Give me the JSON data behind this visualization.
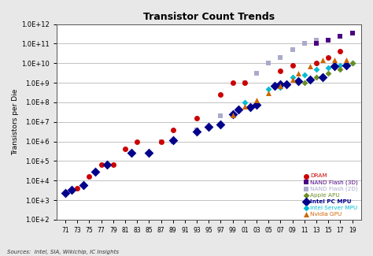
{
  "title": "Transistor Count Trends",
  "ylabel": "Transistors per Die",
  "source_text": "Sources:  Intel, SIA, Wikichip, IC Insights",
  "fig_bg": "#e8e8e8",
  "plot_bg": "#ffffff",
  "series": {
    "DRAM": {
      "color": "#cc0000",
      "marker": "o",
      "ms": 5,
      "zorder": 5,
      "years": [
        1973,
        1975,
        1977,
        1979,
        1981,
        1983,
        1987,
        1989,
        1993,
        1997,
        1999,
        2001,
        2007,
        2009,
        2013,
        2015,
        2017
      ],
      "counts": [
        4000,
        16000,
        65000,
        65000,
        400000,
        1000000,
        1000000,
        4000000,
        16000000,
        256000000,
        1000000000,
        1000000000,
        4000000000,
        8000000000,
        10000000000,
        20000000000,
        40000000000
      ]
    },
    "NAND Flash (3D)": {
      "color": "#4b0082",
      "marker": "s",
      "ms": 5,
      "zorder": 6,
      "years": [
        2013,
        2015,
        2017,
        2019
      ],
      "counts": [
        100000000000.0,
        150000000000.0,
        250000000000.0,
        350000000000.0
      ]
    },
    "NAND Flash (2D)": {
      "color": "#aaaacc",
      "marker": "s",
      "ms": 5,
      "zorder": 4,
      "years": [
        1987,
        1989,
        1993,
        1997,
        2001,
        2003,
        2005,
        2007,
        2009,
        2011,
        2013
      ],
      "counts": [
        1000000.0,
        1000000.0,
        4000000.0,
        20000000.0,
        1000000000.0,
        3000000000.0,
        10000000000.0,
        20000000000.0,
        50000000000.0,
        100000000000.0,
        150000000000.0
      ]
    },
    "Apple APU": {
      "color": "#6b8e23",
      "marker": "D",
      "ms": 4,
      "zorder": 5,
      "years": [
        2011,
        2013,
        2015,
        2017,
        2019
      ],
      "counts": [
        1000000000.0,
        2000000000.0,
        3000000000.0,
        5000000000.0,
        10000000000.0
      ]
    },
    "Intel PC MPU": {
      "color": "#00008B",
      "marker": "D",
      "ms": 6,
      "zorder": 5,
      "bold": true,
      "years": [
        1971,
        1972,
        1974,
        1976,
        1978,
        1982,
        1985,
        1989,
        1993,
        1995,
        1997,
        1999,
        2000,
        2002,
        2003,
        2006,
        2007,
        2008,
        2010,
        2012,
        2014,
        2016,
        2018
      ],
      "counts": [
        2300,
        3500,
        6000,
        29000,
        68000,
        275000,
        275000,
        1200000,
        3100000,
        5500000,
        7500000,
        24000000,
        42000000,
        55000000,
        77000000,
        700000000,
        820000000,
        820000000,
        1170000000,
        1400000000,
        1900000000,
        7200000000,
        8000000000
      ]
    },
    "Intel Server MPU": {
      "color": "#00bcd4",
      "marker": "D",
      "ms": 4,
      "zorder": 4,
      "years": [
        2001,
        2005,
        2007,
        2009,
        2011,
        2013,
        2015,
        2017,
        2019
      ],
      "counts": [
        100000000.0,
        500000000.0,
        600000000.0,
        2000000000.0,
        2500000000.0,
        5000000000.0,
        6000000000.0,
        8000000000.0,
        10000000000.0
      ]
    },
    "Nvidia GPU": {
      "color": "#cc6600",
      "marker": "^",
      "ms": 5,
      "zorder": 5,
      "years": [
        1999,
        2001,
        2003,
        2005,
        2007,
        2009,
        2010,
        2012,
        2014,
        2016,
        2018
      ],
      "counts": [
        22000000,
        60000000,
        130000000,
        300000000.0,
        680000000.0,
        1400000000.0,
        3000000000.0,
        7000000000.0,
        15000000000.0,
        15000000000.0,
        15000000000.0
      ]
    }
  },
  "legend_order": [
    "DRAM",
    "NAND Flash (3D)",
    "NAND Flash (2D)",
    "Apple APU",
    "Intel PC MPU",
    "Intel Server MPU",
    "Nvidia GPU"
  ],
  "yticks": [
    100.0,
    1000.0,
    10000.0,
    100000.0,
    1000000.0,
    10000000.0,
    100000000.0,
    1000000000.0,
    10000000000.0,
    100000000000.0,
    1000000000000.0
  ],
  "ytick_labels": [
    "1.0E+2",
    "1.0E+3",
    "1.0E+4",
    "1.0E+5",
    "1.0E+6",
    "1.0E+7",
    "1.0E+8",
    "1.0E+9",
    "1.0E+10",
    "1.0E+11",
    "1.0E+12"
  ],
  "xlim": [
    1969.5,
    2020.5
  ],
  "ylim": [
    100,
    500000000000.0
  ],
  "xtick_years": [
    1971,
    1973,
    1975,
    1977,
    1979,
    1981,
    1983,
    1985,
    1987,
    1989,
    1991,
    1993,
    1995,
    1997,
    1999,
    2001,
    2003,
    2005,
    2007,
    2009,
    2011,
    2013,
    2015,
    2017,
    2019
  ],
  "xtick_labels": [
    "71",
    "73",
    "75",
    "77",
    "79",
    "81",
    "83",
    "85",
    "87",
    "89",
    "91",
    "93",
    "95",
    "97",
    "99",
    "01",
    "03",
    "05",
    "07",
    "09",
    "11",
    "13",
    "15",
    "17",
    "19"
  ]
}
